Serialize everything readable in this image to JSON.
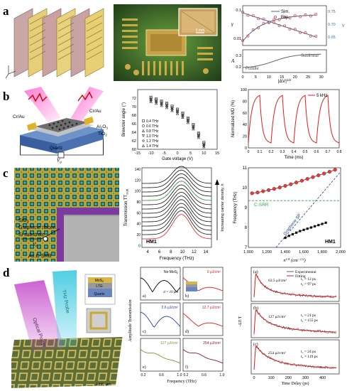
{
  "rows": {
    "a": {
      "label": "a"
    },
    "b": {
      "label": "b"
    },
    "c": {
      "label": "c"
    },
    "d": {
      "label": "d"
    }
  },
  "a_photo": {
    "scale_bar": "5 mm"
  },
  "a_chart": {
    "legend_sim": "Sim.",
    "legend_exp": "Exp.",
    "right_axis_label": "ν",
    "left_axis_top": "γ",
    "left_axis_bottom": "A",
    "xlabel": "|ΔV|",
    "xlabel_sup": "1/2",
    "annotation_puddle": "Puddle",
    "annotation_sublinear": "Sublinear",
    "annotation_big": "γ₀",
    "annotation_nu": "ν",
    "top_yticks": [
      "0.1",
      "0.01"
    ],
    "right_yticks": [
      "0.75",
      "0.70",
      "0.65"
    ],
    "bottom_yticks": [
      "0.3",
      "0.2"
    ],
    "xticks": [
      "0",
      "5",
      "10",
      "15",
      "20",
      "25",
      "30"
    ]
  },
  "b_device": {
    "crau_left": "Cr/Au",
    "crau_right": "Cr/Au",
    "al2o3": "Al",
    "al2o3_sub": "2",
    "al2o3_o": "O",
    "al2o3_o_sub": "3",
    "tio2": "TiO",
    "tio2_sub": "2",
    "quartz": "Quartz",
    "vg": "V",
    "vg_sub": "g"
  },
  "chart_data": [
    {
      "type": "scatter",
      "title": "",
      "xlabel": "Gate voltage (V)",
      "ylabel": "Brewster angle (°)",
      "xlim": [
        -15,
        15
      ],
      "ylim": [
        60,
        74
      ],
      "xticks": [
        "-15",
        "-10",
        "-5",
        "0",
        "5",
        "10",
        "15"
      ],
      "yticks": [
        "72",
        "70",
        "68",
        "66",
        "64",
        "62",
        "60"
      ],
      "x": [
        -10,
        -8,
        -6,
        -4,
        -2,
        0,
        2,
        4,
        6,
        8,
        10
      ],
      "series": [
        {
          "name": "0.4 THz",
          "values": [
            72.2,
            71.8,
            71.3,
            70.8,
            70.1,
            69.4,
            68.5,
            67.3,
            65.8,
            63.8,
            61.6
          ]
        },
        {
          "name": "0.6 THz",
          "values": [
            72.0,
            71.6,
            71.1,
            70.6,
            69.9,
            69.2,
            68.3,
            67.1,
            65.6,
            63.6,
            61.4
          ]
        },
        {
          "name": "0.8 THz",
          "values": [
            71.8,
            71.4,
            70.9,
            70.4,
            69.7,
            69.0,
            68.1,
            66.9,
            65.4,
            63.4,
            61.2
          ]
        },
        {
          "name": "1.0 THz",
          "values": [
            71.6,
            71.2,
            70.7,
            70.2,
            69.5,
            68.8,
            67.9,
            66.7,
            65.2,
            63.2,
            61.0
          ]
        },
        {
          "name": "1.2 THz",
          "values": [
            71.4,
            71.0,
            70.5,
            70.0,
            69.3,
            68.6,
            67.7,
            66.5,
            65.0,
            63.0,
            60.8
          ]
        },
        {
          "name": "1.4 THz",
          "values": [
            71.2,
            70.8,
            70.3,
            69.8,
            69.1,
            68.4,
            67.5,
            66.3,
            64.8,
            62.8,
            60.6
          ]
        }
      ]
    },
    {
      "type": "line",
      "title": "",
      "legend": "5 kHz",
      "xlabel": "Time (ms)",
      "ylabel": "Normalized MD (%)",
      "xlim": [
        0,
        0.8
      ],
      "ylim": [
        0,
        100
      ],
      "xticks": [
        "0",
        "0.1",
        "0.2",
        "0.3",
        "0.4",
        "0.5",
        "0.6",
        "0.7",
        "0.8"
      ],
      "yticks": [
        "100",
        "80",
        "60",
        "40",
        "20",
        "0"
      ],
      "period_ms": 0.2,
      "peak": 90,
      "trough": 8
    },
    {
      "type": "line",
      "title": "",
      "label": "HM1",
      "xlabel": "Frequency (THz)",
      "ylabel": "Transmission TT",
      "ylabel_sub": "SUB",
      "side_label": "Increasing carrier density, n",
      "xticks": [
        "4",
        "6",
        "8",
        "10",
        "12",
        "14"
      ],
      "yticks": [
        "140",
        "120",
        "100",
        "80",
        "60",
        "40",
        "20",
        "0"
      ],
      "xlim": [
        3,
        15
      ],
      "ylim": [
        0,
        150
      ]
    },
    {
      "type": "scatter",
      "title": "",
      "label": "HM1",
      "xlabel": "n",
      "xlabel_sup": "1/4",
      "xlabel_unit": "(cm",
      "xlabel_unit_sup": "−1/2",
      "ylabel": "Frequency (THz)",
      "xlim": [
        1000,
        2000
      ],
      "ylim": [
        7,
        11
      ],
      "xticks": [
        "1,000",
        "1,200",
        "1,400",
        "1,600",
        "1,800",
        "2,000"
      ],
      "yticks": [
        "11",
        "10",
        "9",
        "8",
        "7"
      ],
      "annotation_csrr": "C-SRR",
      "annotation_gsp": "Graphene SP",
      "series": [
        {
          "x": [
            1040,
            1100,
            1160,
            1220,
            1280,
            1340,
            1400,
            1460,
            1520,
            1580,
            1640,
            1700,
            1760,
            1820,
            1880,
            1940
          ],
          "values": [
            9.72,
            9.76,
            9.82,
            9.88,
            9.94,
            10.01,
            10.09,
            10.17,
            10.26,
            10.35,
            10.44,
            10.53,
            10.62,
            10.71,
            10.8,
            10.9
          ]
        },
        {
          "x": [
            1400,
            1440,
            1480,
            1520,
            1560,
            1600,
            1640,
            1680,
            1720,
            1760,
            1800,
            1840
          ],
          "values": [
            7.48,
            7.58,
            7.66,
            7.74,
            7.82,
            7.88,
            7.94,
            8.0,
            8.06,
            8.12,
            8.18,
            8.24
          ]
        }
      ]
    },
    {
      "type": "line",
      "title": "",
      "xlabel": "Frequency (THz)",
      "ylabel": "Amplitude Transmission",
      "subpanels": [
        {
          "tag": "a)",
          "legend": "No MoS",
          "legend_sub": "2",
          "note": "d = 10 μm",
          "color": "#000000"
        },
        {
          "tag": "b)",
          "legend": "0 μJ/cm²",
          "color": "#e41a1c"
        },
        {
          "tag": "c)",
          "legend": "2.6 μJ/cm²",
          "color": "#1f3fb4"
        },
        {
          "tag": "d)",
          "legend": "12.7 μJ/cm²",
          "color": "#e41a1c"
        },
        {
          "tag": "e)",
          "legend": "127 μJ/cm²",
          "color": "#6a9a2c"
        },
        {
          "tag": "f)",
          "legend": "254 μJ/cm²",
          "color": "#8a1a2a"
        }
      ],
      "xticks": [
        "0.2",
        "0.6",
        "1.0",
        "0.2",
        "0.6",
        "1.0"
      ]
    },
    {
      "type": "line",
      "title": "",
      "xlabel": "Time Delay (ps)",
      "ylabel": "-ΔT/T",
      "xticks": [
        "0",
        "100",
        "200",
        "300",
        "400"
      ],
      "legend_experimental": "Experimental",
      "legend_fitting": "Fitting",
      "subpanels": [
        {
          "tag": "(a)",
          "fluence": "63.5 μJ/cm²",
          "t1": "12 ps",
          "t2": "97 ps"
        },
        {
          "tag": "(b)",
          "fluence": "127 μJ/cm²",
          "t1": "21 ps",
          "t2": "155 ps"
        },
        {
          "tag": "(c)",
          "fluence": "254 μJ/cm²",
          "t1": "24 ps",
          "t2": "119 ps"
        }
      ]
    }
  ],
  "c_device": {
    "sio2": "SiO",
    "sio2_sub": "2",
    "graphene": "Graphene ribbon",
    "si": "Si substrate",
    "vg": "V",
    "vg_sub": "G",
    "csrr": "Au C-SRR"
  },
  "d_device": {
    "pump": "Optical Pump",
    "probe": "THz Probe",
    "mos2": "MoS",
    "mos2_sub": "2",
    "ltg": "LTG",
    "quartz": "Quartz",
    "unit": "Unit, μm"
  }
}
